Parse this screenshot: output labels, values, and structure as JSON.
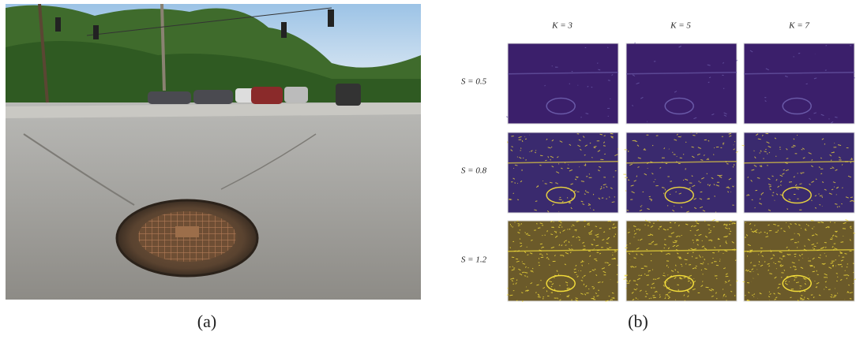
{
  "figure": {
    "captions": [
      "(a)",
      "(b)"
    ],
    "columns": [
      "K = 3",
      "K = 5",
      "K = 7"
    ],
    "rows": [
      "S = 0.5",
      "S = 0.8",
      "S = 1.2"
    ]
  }
}
